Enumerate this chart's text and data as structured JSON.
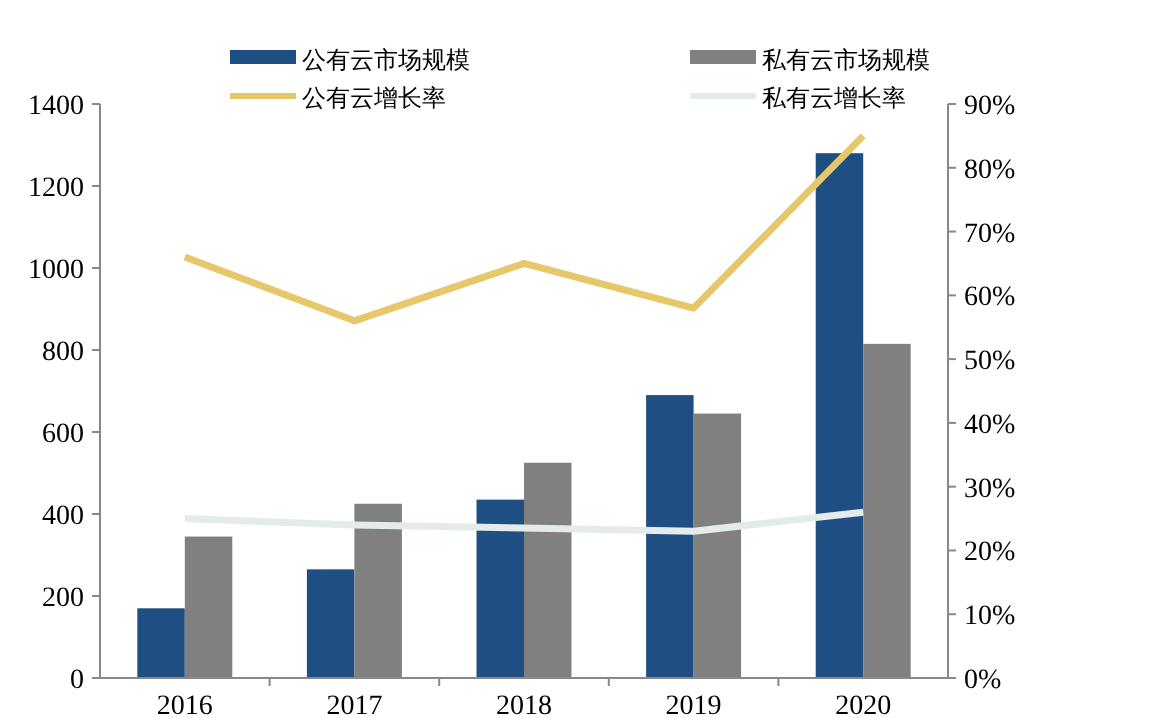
{
  "chart_data": {
    "type": "bar",
    "categories": [
      "2016",
      "2017",
      "2018",
      "2019",
      "2020"
    ],
    "series": [
      {
        "name": "公有云市场规模",
        "color": "#1f4e82",
        "values": [
          170,
          265,
          435,
          690,
          1280
        ]
      },
      {
        "name": "私有云市场规模",
        "color": "#808080",
        "values": [
          345,
          425,
          525,
          645,
          815
        ]
      },
      {
        "name": "公有云增长率",
        "type": "line",
        "axis": "y2",
        "color": "#e6c76a",
        "values": [
          66,
          56,
          65,
          58,
          85
        ]
      },
      {
        "name": "私有云增长率",
        "type": "line",
        "axis": "y2",
        "color": "#e4ebeb",
        "values": [
          25,
          24,
          23.5,
          23,
          26
        ]
      }
    ],
    "ylim": [
      0,
      1400
    ],
    "yticks": [
      0,
      200,
      400,
      600,
      800,
      1000,
      1200,
      1400
    ],
    "y2lim": [
      0,
      90
    ],
    "y2ticks": [
      {
        "value": 0,
        "label": "0%"
      },
      {
        "value": 10,
        "label": "10%"
      },
      {
        "value": 20,
        "label": "20%"
      },
      {
        "value": 30,
        "label": "30%"
      },
      {
        "value": 40,
        "label": "40%"
      },
      {
        "value": 50,
        "label": "50%"
      },
      {
        "value": 60,
        "label": "60%"
      },
      {
        "value": 70,
        "label": "70%"
      },
      {
        "value": 80,
        "label": "80%"
      },
      {
        "value": 90,
        "label": "90%"
      }
    ],
    "legend": "top",
    "grid": false
  }
}
